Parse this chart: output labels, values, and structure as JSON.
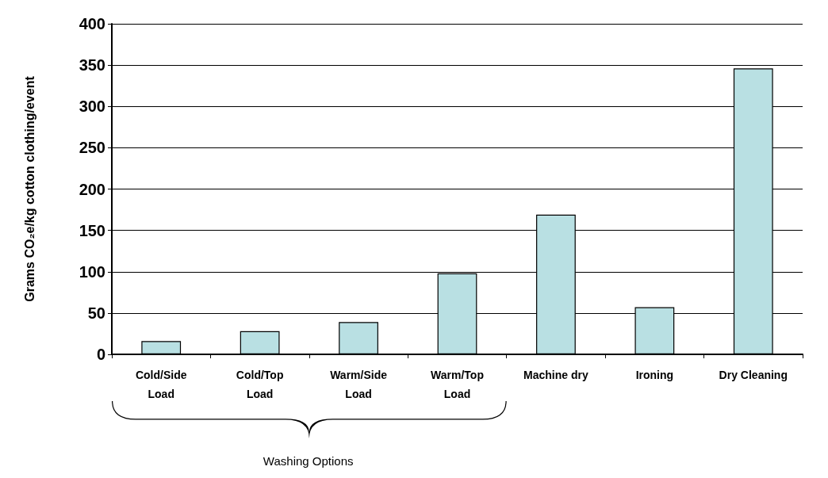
{
  "chart_data": {
    "type": "bar",
    "categories": [
      "Cold/Side\nLoad",
      "Cold/Top\nLoad",
      "Warm/Side\nLoad",
      "Warm/Top\nLoad",
      "Machine dry",
      "Ironing",
      "Dry Cleaning"
    ],
    "values": [
      16,
      28,
      39,
      98,
      169,
      57,
      346
    ],
    "color": "#b9e0e3",
    "ylabel": "Grams CO₂e/kg cotton clothing/event",
    "ylim": [
      0,
      400
    ],
    "yticks": [
      0,
      50,
      100,
      150,
      200,
      250,
      300,
      350,
      400
    ],
    "grid": "y",
    "annotations": [
      "Washing Options"
    ]
  }
}
